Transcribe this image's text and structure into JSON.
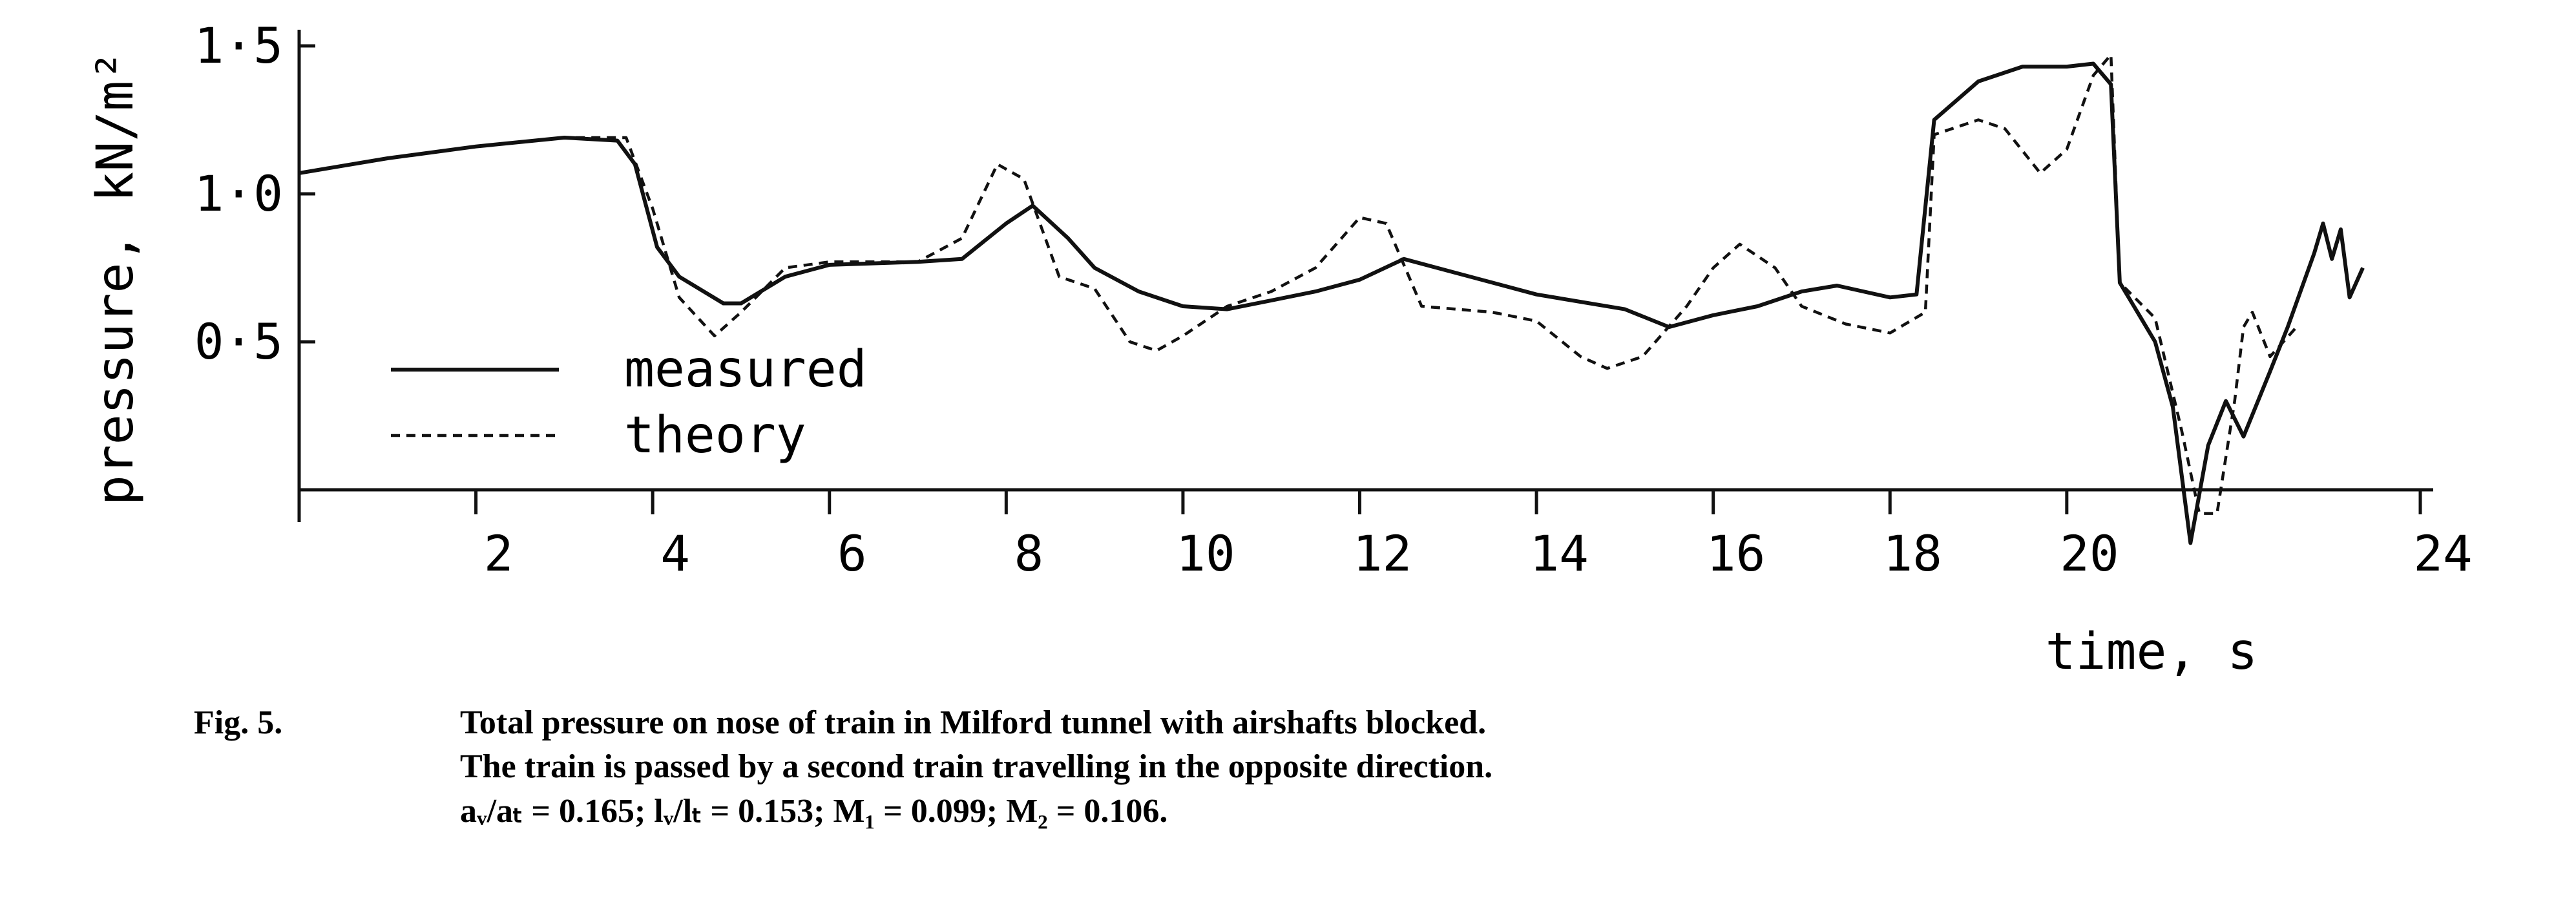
{
  "chart_data": {
    "type": "line",
    "y_label": "pressure, kN/m²",
    "x_label": "time, s",
    "xlim": [
      0,
      24
    ],
    "xticks": [
      2,
      4,
      6,
      8,
      10,
      12,
      14,
      16,
      18,
      20,
      24
    ],
    "ylim": [
      0,
      1.5
    ],
    "yticks": [
      {
        "value": 0.5,
        "label": "0·5"
      },
      {
        "value": 1.0,
        "label": "1·0"
      },
      {
        "value": 1.5,
        "label": "1·5"
      }
    ],
    "series": [
      {
        "name": "measured",
        "color": "#111111",
        "line_style": "solid",
        "x": [
          0,
          1,
          2,
          3,
          3.6,
          3.8,
          4.05,
          4.3,
          4.8,
          5,
          5.5,
          6,
          7,
          7.5,
          8,
          8.3,
          8.7,
          9,
          9.5,
          10,
          10.5,
          11,
          11.5,
          12,
          12.5,
          13,
          13.5,
          14,
          15,
          15.5,
          16,
          16.5,
          17,
          17.4,
          18,
          18.3,
          18.5,
          19,
          19.5,
          20,
          20.3,
          20.5,
          20.6,
          20.8,
          21,
          21.2,
          21.4,
          21.6,
          21.8,
          22,
          22.3,
          22.5,
          22.8,
          22.9,
          23,
          23.1,
          23.2,
          23.35
        ],
        "values": [
          1.07,
          1.12,
          1.16,
          1.19,
          1.18,
          1.1,
          0.82,
          0.72,
          0.63,
          0.63,
          0.72,
          0.76,
          0.77,
          0.78,
          0.9,
          0.96,
          0.85,
          0.75,
          0.67,
          0.62,
          0.61,
          0.64,
          0.67,
          0.71,
          0.78,
          0.74,
          0.7,
          0.66,
          0.61,
          0.55,
          0.59,
          0.62,
          0.67,
          0.69,
          0.65,
          0.66,
          1.25,
          1.38,
          1.43,
          1.43,
          1.44,
          1.37,
          0.7,
          0.6,
          0.5,
          0.28,
          -0.18,
          0.15,
          0.3,
          0.18,
          0.4,
          0.55,
          0.8,
          0.9,
          0.78,
          0.88,
          0.65,
          0.75
        ]
      },
      {
        "name": "theory",
        "color": "#111111",
        "line_style": "dashed",
        "x": [
          0,
          1,
          2,
          3,
          3.7,
          4,
          4.3,
          4.7,
          5,
          5.5,
          6,
          7,
          7.5,
          7.9,
          8.2,
          8.6,
          9,
          9.4,
          9.7,
          10,
          10.5,
          11,
          11.5,
          12,
          12.3,
          12.7,
          13.5,
          14,
          14.5,
          14.8,
          15.2,
          15.7,
          16,
          16.3,
          16.7,
          17,
          17.5,
          18,
          18.4,
          18.5,
          19,
          19.3,
          19.7,
          20,
          20.3,
          20.5,
          20.6,
          21,
          21.3,
          21.5,
          21.7,
          21.9,
          22,
          22.1,
          22.3,
          22.6
        ],
        "values": [
          1.07,
          1.12,
          1.16,
          1.19,
          1.19,
          0.95,
          0.65,
          0.52,
          0.6,
          0.75,
          0.77,
          0.77,
          0.85,
          1.1,
          1.05,
          0.72,
          0.68,
          0.5,
          0.47,
          0.52,
          0.62,
          0.67,
          0.75,
          0.92,
          0.9,
          0.62,
          0.6,
          0.57,
          0.45,
          0.41,
          0.45,
          0.62,
          0.75,
          0.83,
          0.75,
          0.62,
          0.56,
          0.53,
          0.6,
          1.2,
          1.25,
          1.22,
          1.07,
          1.15,
          1.4,
          1.47,
          0.7,
          0.58,
          0.2,
          -0.08,
          -0.08,
          0.3,
          0.55,
          0.6,
          0.45,
          0.55
        ]
      }
    ]
  },
  "caption": {
    "label": "Fig. 5.",
    "lines": [
      "Total pressure on nose of train in Milford tunnel with airshafts blocked.",
      "The train is passed by a second train travelling in the opposite direction.",
      "aᵥ/aₜ = 0.165;  lᵥ/lₜ = 0.153;  M₁ = 0.099;  M₂ = 0.106."
    ]
  }
}
